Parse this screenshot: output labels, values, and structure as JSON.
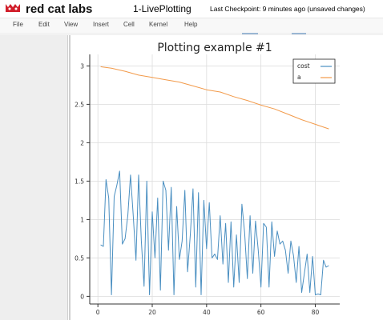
{
  "app": {
    "brand": "red cat labs",
    "notebook_title": "1-LivePlotting",
    "checkpoint": "Last Checkpoint: 9 minutes ago (unsaved changes)"
  },
  "menu": [
    "File",
    "Edit",
    "View",
    "Insert",
    "Cell",
    "Kernel",
    "Help"
  ],
  "icons": {
    "logo": "red-cat-logo-icon"
  },
  "colors": {
    "cost": "#4a8fc1",
    "a": "#f29a4a",
    "brand": "#d11e2a"
  },
  "chart_data": {
    "type": "line",
    "title": "Plotting example #1",
    "xlim": [
      -3,
      89
    ],
    "ylim": [
      -0.1,
      3.15
    ],
    "xticks": [
      0,
      20,
      40,
      60,
      80
    ],
    "yticks": [
      0,
      0.5,
      1,
      1.5,
      2,
      2.5,
      3
    ],
    "ytick_labels": [
      "0",
      "0.5",
      "1",
      "1.5",
      "2",
      "2.5",
      "3"
    ],
    "grid": true,
    "legend": "top-right",
    "series": [
      {
        "name": "cost",
        "x": [
          1,
          2,
          3,
          4,
          5,
          6,
          7,
          8,
          9,
          10,
          11,
          12,
          13,
          14,
          15,
          16,
          17,
          18,
          19,
          20,
          21,
          22,
          23,
          24,
          25,
          26,
          27,
          28,
          29,
          30,
          31,
          32,
          33,
          34,
          35,
          36,
          37,
          38,
          39,
          40,
          41,
          42,
          43,
          44,
          45,
          46,
          47,
          48,
          49,
          50,
          51,
          52,
          53,
          54,
          55,
          56,
          57,
          58,
          59,
          60,
          61,
          62,
          63,
          64,
          65,
          66,
          67,
          68,
          69,
          70,
          71,
          72,
          73,
          74,
          75,
          76,
          77,
          78,
          79,
          80,
          81,
          82,
          83,
          84,
          85
        ],
        "values": [
          0.67,
          0.65,
          1.52,
          1.28,
          0.02,
          1.3,
          1.45,
          1.63,
          0.68,
          0.75,
          1.05,
          1.58,
          1.05,
          0.47,
          1.58,
          0.72,
          0.13,
          1.5,
          0.02,
          1.1,
          0.5,
          1.28,
          0.08,
          1.5,
          1.38,
          0.6,
          1.42,
          0.02,
          1.17,
          0.48,
          0.72,
          1.38,
          0.32,
          0.8,
          1.4,
          0.12,
          1.35,
          0.02,
          1.25,
          0.62,
          1.22,
          0.5,
          0.55,
          0.48,
          1.05,
          0.42,
          0.95,
          0.18,
          0.97,
          0.12,
          0.8,
          0.18,
          1.2,
          0.83,
          0.23,
          1.05,
          0.3,
          0.98,
          0.6,
          0.12,
          0.95,
          0.9,
          0.12,
          0.97,
          0.52,
          0.85,
          0.68,
          0.72,
          0.6,
          0.3,
          0.72,
          0.53,
          0.18,
          0.65,
          0.05,
          0.3,
          0.55,
          0.05,
          0.52,
          0.02,
          0.03,
          0.02,
          0.47,
          0.38,
          0.4
        ]
      },
      {
        "name": "a",
        "x": [
          1,
          5,
          10,
          15,
          20,
          25,
          30,
          35,
          40,
          45,
          50,
          55,
          60,
          65,
          70,
          75,
          80,
          85
        ],
        "values": [
          2.99,
          2.97,
          2.93,
          2.88,
          2.85,
          2.82,
          2.79,
          2.74,
          2.69,
          2.66,
          2.6,
          2.55,
          2.49,
          2.44,
          2.37,
          2.3,
          2.24,
          2.18
        ]
      }
    ]
  }
}
